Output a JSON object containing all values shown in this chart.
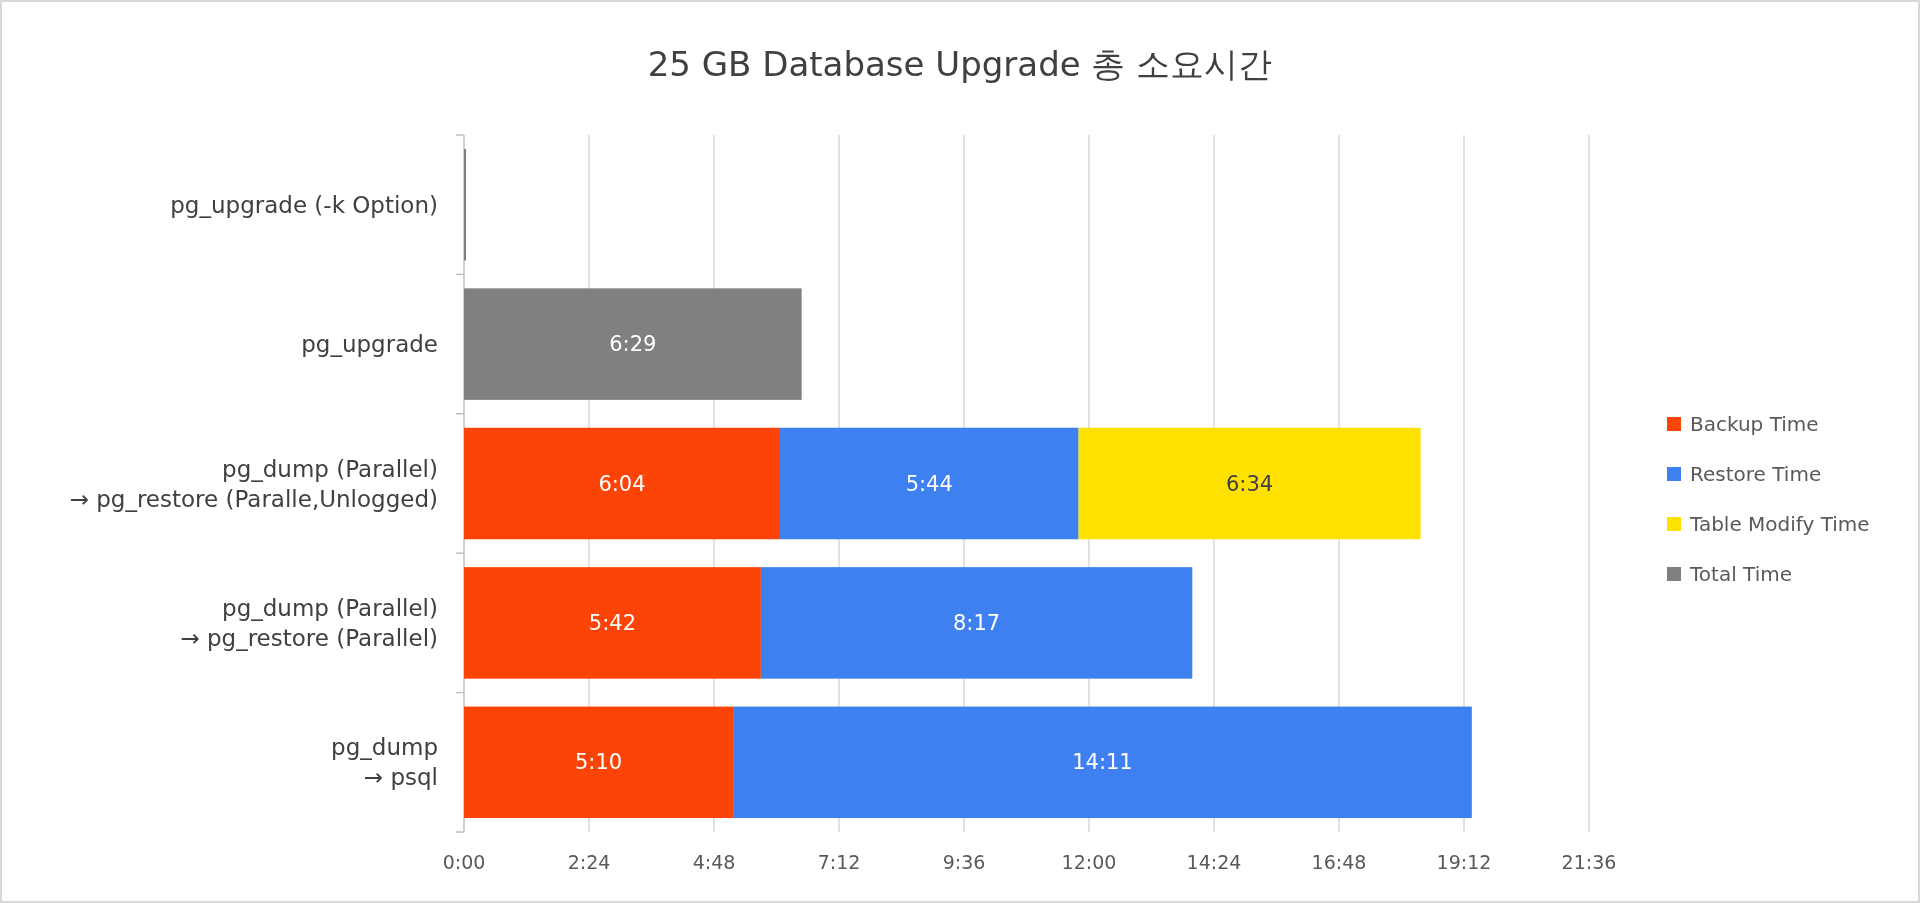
{
  "chart_data": {
    "type": "bar",
    "orientation": "horizontal",
    "stacked": true,
    "title": "25 GB Database Upgrade 총 소요시간",
    "categories": [
      "pg_upgrade (-k Option)",
      "pg_upgrade",
      "pg_dump (Parallel)\n→ pg_restore (Paralle,Unlogged)",
      "pg_dump (Parallel)\n→ pg_restore (Parallel)",
      "pg_dump\n→ psql"
    ],
    "series": [
      {
        "name": "Backup Time",
        "color": "#fc4308",
        "values": [
          null,
          null,
          6.0667,
          5.7,
          5.1667
        ],
        "value_labels": [
          null,
          null,
          "6:04",
          "5:42",
          "5:10"
        ]
      },
      {
        "name": "Restore Time",
        "color": "#3f80f0",
        "values": [
          null,
          null,
          5.7333,
          8.2833,
          14.1833
        ],
        "value_labels": [
          null,
          null,
          "5:44",
          "8:17",
          "14:11"
        ]
      },
      {
        "name": "Table Modify Time",
        "color": "#ffe100",
        "values": [
          null,
          null,
          6.5667,
          null,
          null
        ],
        "value_labels": [
          null,
          null,
          "6:34",
          null,
          null
        ]
      },
      {
        "name": "Total Time",
        "color": "#808080",
        "values": [
          0.04,
          6.4833,
          null,
          null,
          null
        ],
        "value_labels": [
          null,
          "6:29",
          null,
          null,
          null
        ]
      }
    ],
    "xlim": [
      0,
      21.6
    ],
    "xticks": [
      {
        "value": 0,
        "label": "0:00"
      },
      {
        "value": 2.4,
        "label": "2:24"
      },
      {
        "value": 4.8,
        "label": "4:48"
      },
      {
        "value": 7.2,
        "label": "7:12"
      },
      {
        "value": 9.6,
        "label": "9:36"
      },
      {
        "value": 12,
        "label": "12:00"
      },
      {
        "value": 14.4,
        "label": "14:24"
      },
      {
        "value": 16.8,
        "label": "16:48"
      },
      {
        "value": 19.2,
        "label": "19:12"
      },
      {
        "value": 21.6,
        "label": "21:36"
      }
    ],
    "grid": "x",
    "legend": "right"
  }
}
